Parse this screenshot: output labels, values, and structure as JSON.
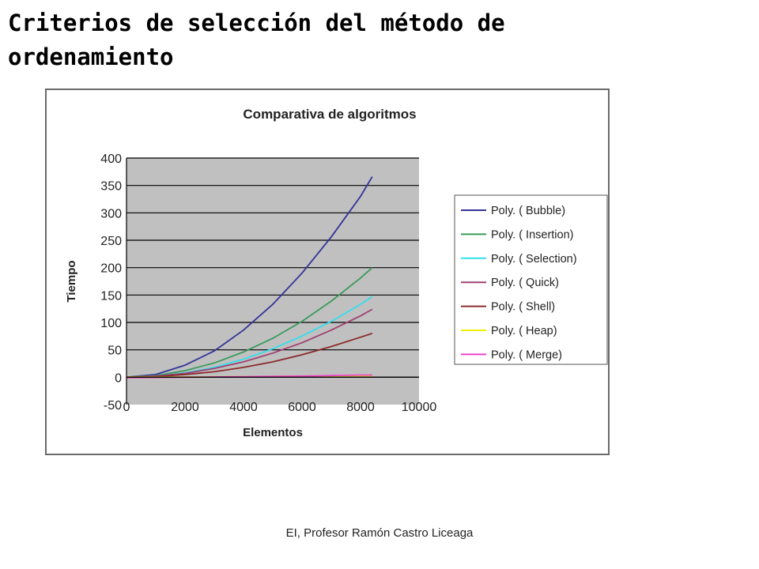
{
  "slide": {
    "title": "Criterios de selección del método de ordenamiento",
    "footer": "EI, Profesor Ramón Castro Liceaga"
  },
  "colors": {
    "plot_background": "#c0c0c0",
    "grid": "#000000",
    "frame": "#6a6a6a"
  },
  "chart_data": {
    "type": "line",
    "title": "Comparativa de algoritmos",
    "xlabel": "Elementos",
    "ylabel": "Tiempo",
    "xlim": [
      0,
      10000
    ],
    "ylim": [
      -50,
      400
    ],
    "xticks": [
      0,
      2000,
      4000,
      6000,
      8000,
      10000
    ],
    "yticks": [
      -50,
      0,
      50,
      100,
      150,
      200,
      250,
      300,
      350,
      400
    ],
    "grid": true,
    "legend_position": "right",
    "series": [
      {
        "name": "Poly. ( Bubble)",
        "color": "#333399",
        "points": [
          [
            0,
            0
          ],
          [
            1000,
            5
          ],
          [
            2000,
            22
          ],
          [
            3000,
            48
          ],
          [
            4000,
            86
          ],
          [
            5000,
            133
          ],
          [
            6000,
            190
          ],
          [
            7000,
            256
          ],
          [
            8000,
            330
          ],
          [
            8400,
            366
          ]
        ]
      },
      {
        "name": "Poly. ( Insertion)",
        "color": "#3a9a5a",
        "points": [
          [
            0,
            0
          ],
          [
            1000,
            3
          ],
          [
            2000,
            12
          ],
          [
            3000,
            26
          ],
          [
            4000,
            46
          ],
          [
            5000,
            71
          ],
          [
            6000,
            102
          ],
          [
            7000,
            139
          ],
          [
            8000,
            181
          ],
          [
            8400,
            200
          ]
        ]
      },
      {
        "name": "Poly. ( Selection)",
        "color": "#33ddee",
        "points": [
          [
            0,
            0
          ],
          [
            1000,
            2
          ],
          [
            2000,
            8
          ],
          [
            3000,
            18
          ],
          [
            4000,
            33
          ],
          [
            5000,
            52
          ],
          [
            6000,
            75
          ],
          [
            7000,
            102
          ],
          [
            8000,
            133
          ],
          [
            8400,
            147
          ]
        ]
      },
      {
        "name": "Poly. ( Quick)",
        "color": "#a04070",
        "points": [
          [
            0,
            0
          ],
          [
            1000,
            2
          ],
          [
            2000,
            7
          ],
          [
            3000,
            16
          ],
          [
            4000,
            28
          ],
          [
            5000,
            44
          ],
          [
            6000,
            63
          ],
          [
            7000,
            86
          ],
          [
            8000,
            112
          ],
          [
            8400,
            124
          ]
        ]
      },
      {
        "name": "Poly. ( Shell)",
        "color": "#8b2a2a",
        "points": [
          [
            0,
            0
          ],
          [
            1000,
            1
          ],
          [
            2000,
            5
          ],
          [
            3000,
            10
          ],
          [
            4000,
            18
          ],
          [
            5000,
            28
          ],
          [
            6000,
            41
          ],
          [
            7000,
            56
          ],
          [
            8000,
            73
          ],
          [
            8400,
            80
          ]
        ]
      },
      {
        "name": "Poly. ( Heap)",
        "color": "#eeee00",
        "points": [
          [
            0,
            0
          ],
          [
            2000,
            0.5
          ],
          [
            4000,
            1
          ],
          [
            6000,
            2
          ],
          [
            8000,
            3
          ],
          [
            8400,
            3
          ]
        ]
      },
      {
        "name": "Poly. ( Merge)",
        "color": "#ee44cc",
        "points": [
          [
            0,
            -1
          ],
          [
            2000,
            0
          ],
          [
            4000,
            1
          ],
          [
            6000,
            2
          ],
          [
            8000,
            4
          ],
          [
            8400,
            4
          ]
        ]
      }
    ]
  }
}
